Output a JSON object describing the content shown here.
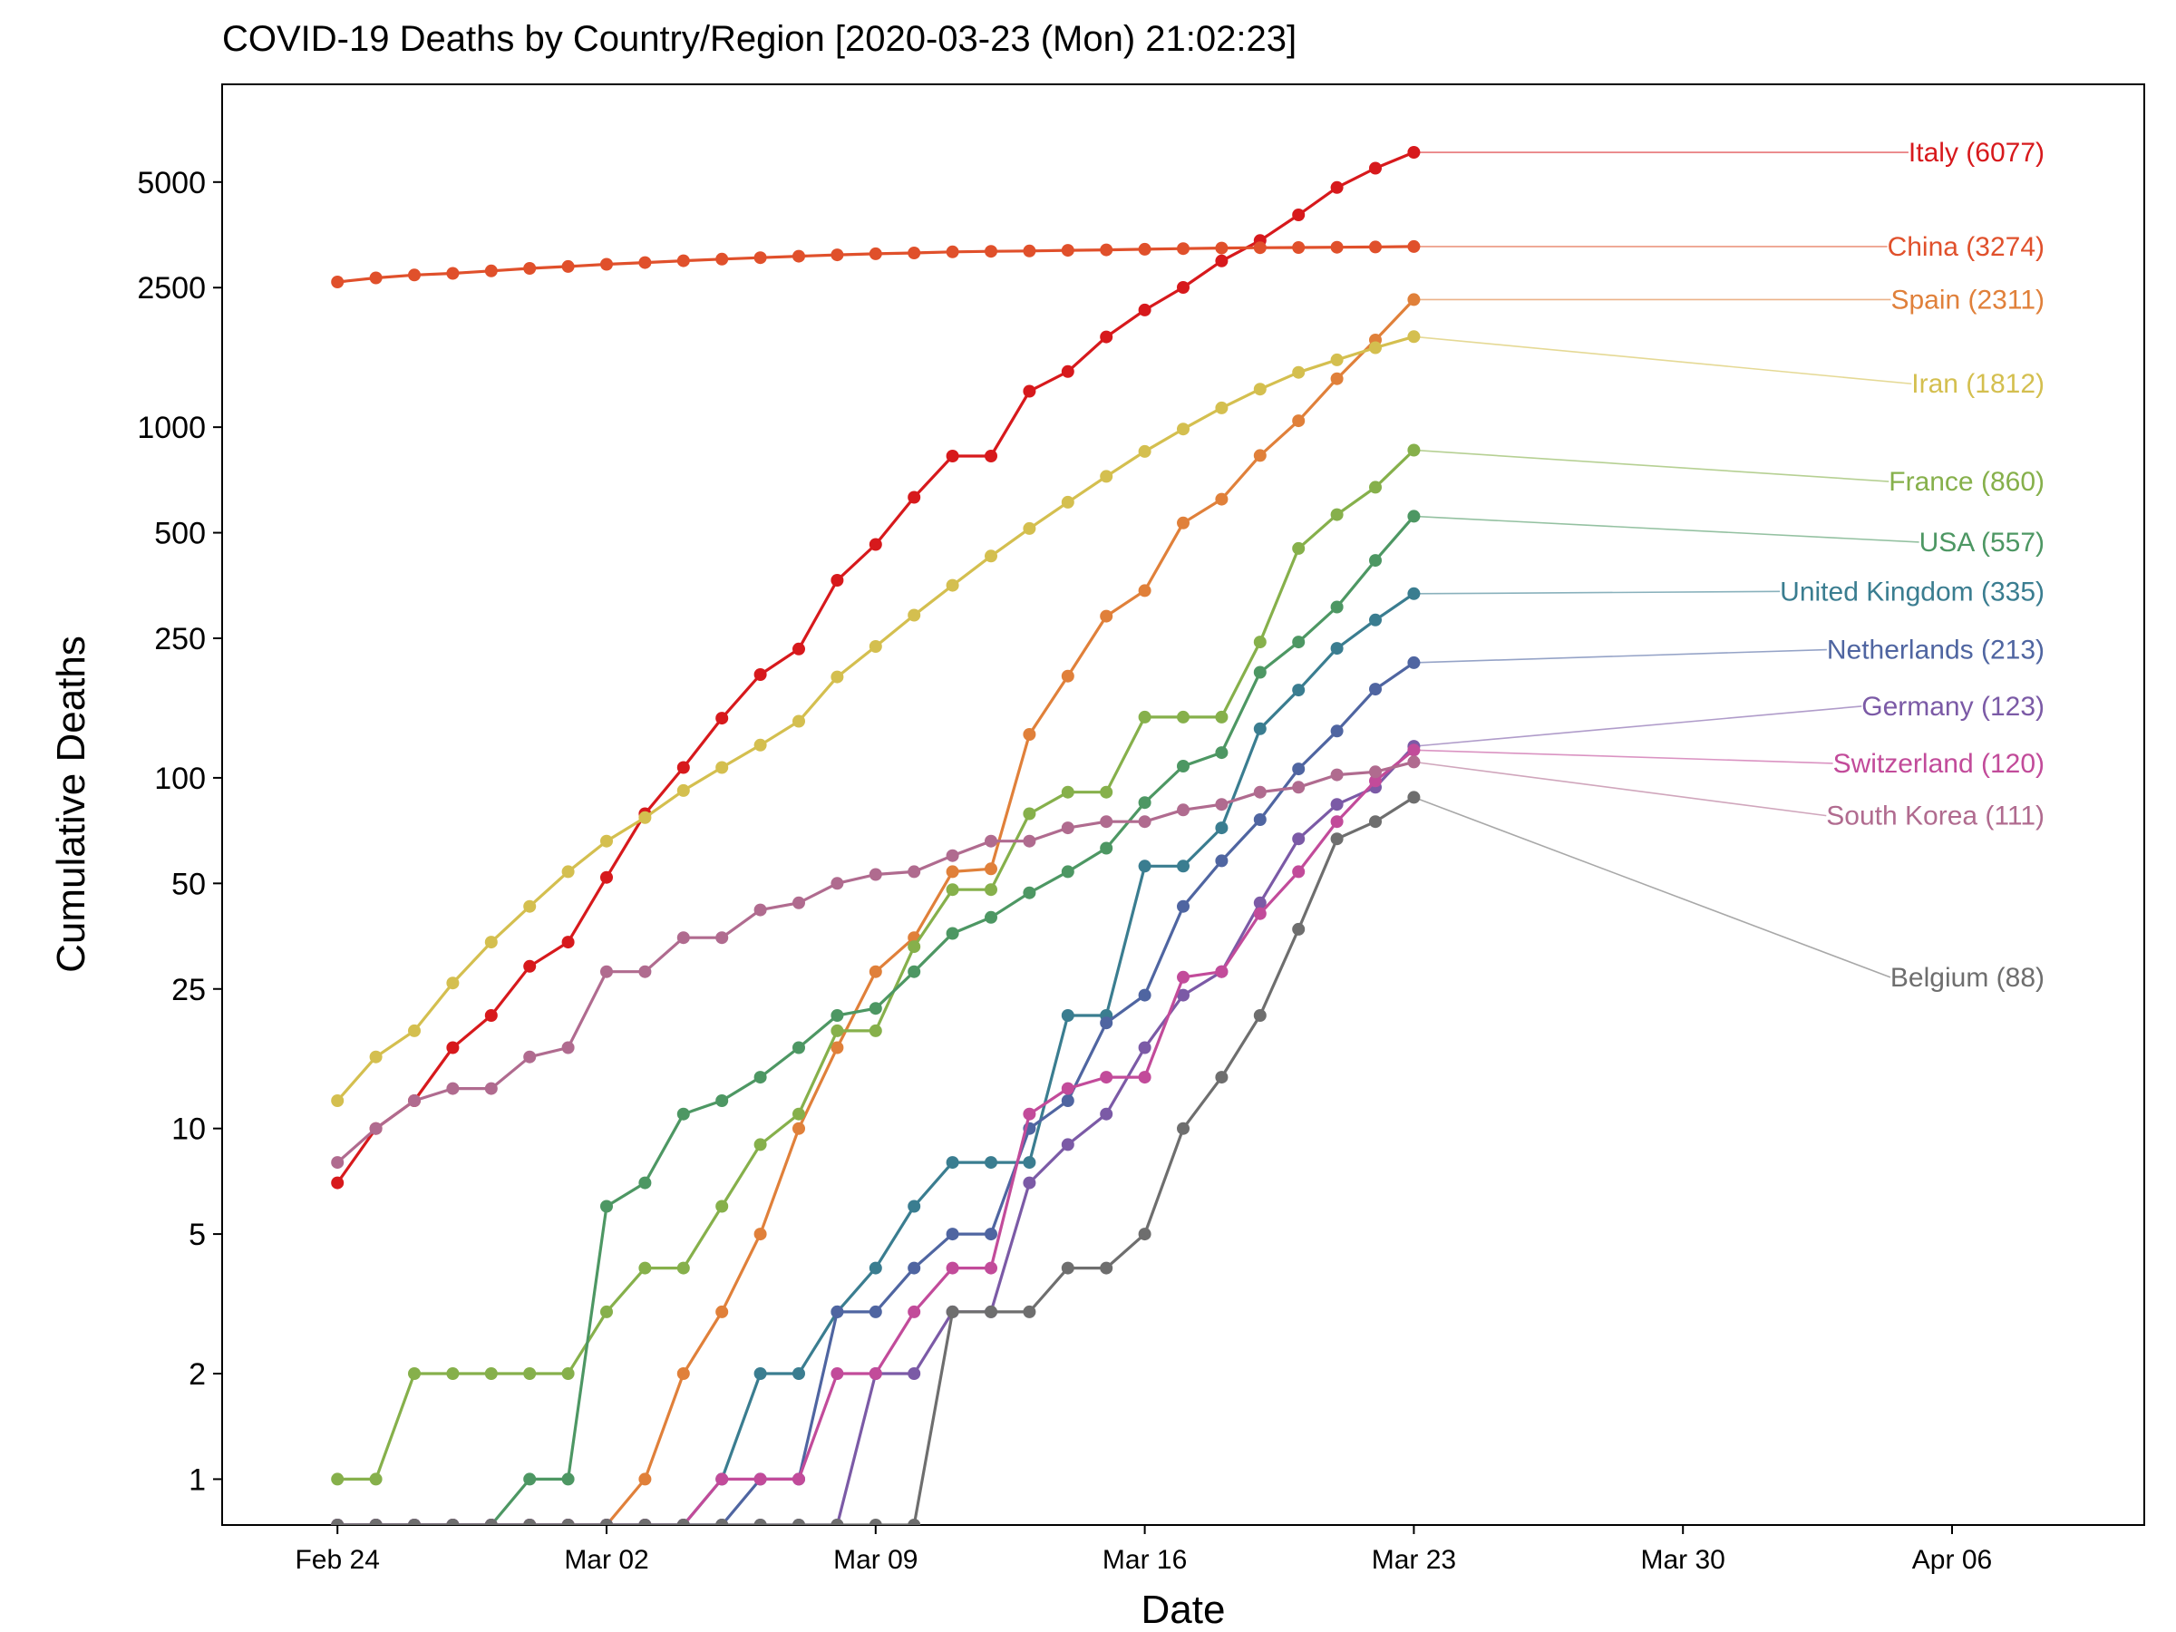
{
  "chart_data": {
    "type": "line",
    "title": "COVID-19 Deaths by Country/Region [2020-03-23 (Mon) 21:02:23]",
    "xlabel": "Date",
    "ylabel": "Cumulative Deaths",
    "y_scale": "log",
    "grid": false,
    "legend": "direct labels at right end of each line",
    "x_axis": {
      "start_date": "2020-02-21",
      "end_date": "2020-04-11",
      "ticks": [
        {
          "date": "2020-02-24",
          "label": "Feb 24"
        },
        {
          "date": "2020-03-02",
          "label": "Mar 02"
        },
        {
          "date": "2020-03-09",
          "label": "Mar 09"
        },
        {
          "date": "2020-03-16",
          "label": "Mar 16"
        },
        {
          "date": "2020-03-23",
          "label": "Mar 23"
        },
        {
          "date": "2020-03-30",
          "label": "Mar 30"
        },
        {
          "date": "2020-04-06",
          "label": "Apr 06"
        }
      ]
    },
    "y_axis": {
      "min": 0.74,
      "max": 9500,
      "ticks": [
        {
          "value": 1,
          "label": "1"
        },
        {
          "value": 2,
          "label": "2"
        },
        {
          "value": 5,
          "label": "5"
        },
        {
          "value": 10,
          "label": "10"
        },
        {
          "value": 25,
          "label": "25"
        },
        {
          "value": 50,
          "label": "50"
        },
        {
          "value": 100,
          "label": "100"
        },
        {
          "value": 250,
          "label": "250"
        },
        {
          "value": 500,
          "label": "500"
        },
        {
          "value": 1000,
          "label": "1000"
        },
        {
          "value": 2500,
          "label": "2500"
        },
        {
          "value": 5000,
          "label": "5000"
        }
      ]
    },
    "dates": [
      "2020-02-24",
      "2020-02-25",
      "2020-02-26",
      "2020-02-27",
      "2020-02-28",
      "2020-02-29",
      "2020-03-01",
      "2020-03-02",
      "2020-03-03",
      "2020-03-04",
      "2020-03-05",
      "2020-03-06",
      "2020-03-07",
      "2020-03-08",
      "2020-03-09",
      "2020-03-10",
      "2020-03-11",
      "2020-03-12",
      "2020-03-13",
      "2020-03-14",
      "2020-03-15",
      "2020-03-16",
      "2020-03-17",
      "2020-03-18",
      "2020-03-19",
      "2020-03-20",
      "2020-03-21",
      "2020-03-22",
      "2020-03-23"
    ],
    "series": [
      {
        "name": "Italy",
        "label": "Italy (6077)",
        "color": "#d7191c",
        "label_value": 6077,
        "values": [
          7,
          10,
          12,
          17,
          21,
          29,
          34,
          52,
          79,
          107,
          148,
          197,
          233,
          366,
          463,
          631,
          827,
          827,
          1266,
          1441,
          1809,
          2158,
          2503,
          2978,
          3405,
          4032,
          4825,
          5476,
          6077
        ]
      },
      {
        "name": "China",
        "label": "China (3274)",
        "color": "#e0502b",
        "label_value": 3274,
        "values": [
          2595,
          2665,
          2717,
          2746,
          2790,
          2837,
          2872,
          2914,
          2947,
          2983,
          3015,
          3044,
          3072,
          3100,
          3123,
          3139,
          3161,
          3172,
          3180,
          3193,
          3203,
          3217,
          3230,
          3241,
          3249,
          3253,
          3259,
          3265,
          3274
        ]
      },
      {
        "name": "Spain",
        "label": "Spain (2311)",
        "color": "#e0803a",
        "label_value": 2311,
        "values": [
          0,
          0,
          0,
          0,
          0,
          0,
          0,
          0,
          1,
          2,
          3,
          5,
          10,
          17,
          28,
          35,
          54,
          55,
          133,
          195,
          289,
          342,
          533,
          623,
          830,
          1043,
          1375,
          1772,
          2311
        ]
      },
      {
        "name": "Iran",
        "label": "Iran (1812)",
        "color": "#d4bf4f",
        "label_value": 1812,
        "values": [
          12,
          16,
          19,
          26,
          34,
          43,
          54,
          66,
          77,
          92,
          107,
          124,
          145,
          194,
          237,
          291,
          354,
          429,
          514,
          611,
          724,
          853,
          988,
          1135,
          1284,
          1433,
          1556,
          1685,
          1812
        ]
      },
      {
        "name": "France",
        "label": "France (860)",
        "color": "#86b04b",
        "label_value": 860,
        "values": [
          1,
          1,
          2,
          2,
          2,
          2,
          2,
          3,
          4,
          4,
          6,
          9,
          11,
          19,
          19,
          33,
          48,
          48,
          79,
          91,
          91,
          149,
          149,
          149,
          244,
          451,
          563,
          674,
          860
        ]
      },
      {
        "name": "USA",
        "label": "USA (557)",
        "color": "#4d9763",
        "label_value": 557,
        "values": [
          0,
          0,
          0,
          0,
          0,
          1,
          1,
          6,
          7,
          11,
          12,
          14,
          17,
          21,
          22,
          28,
          36,
          40,
          47,
          54,
          63,
          85,
          108,
          118,
          200,
          244,
          307,
          417,
          557
        ]
      },
      {
        "name": "United Kingdom",
        "label": "United Kingdom (335)",
        "color": "#3a7d90",
        "label_value": 335,
        "values": [
          0,
          0,
          0,
          0,
          0,
          0,
          0,
          0,
          0,
          0,
          1,
          2,
          2,
          3,
          4,
          6,
          8,
          8,
          8,
          21,
          21,
          56,
          56,
          72,
          138,
          178,
          234,
          282,
          335
        ]
      },
      {
        "name": "Netherlands",
        "label": "Netherlands (213)",
        "color": "#4f65a1",
        "label_value": 213,
        "values": [
          0,
          0,
          0,
          0,
          0,
          0,
          0,
          0,
          0,
          0,
          0,
          1,
          1,
          3,
          3,
          4,
          5,
          5,
          10,
          12,
          20,
          24,
          43,
          58,
          76,
          106,
          136,
          179,
          213
        ]
      },
      {
        "name": "Germany",
        "label": "Germany (123)",
        "color": "#7b5aa6",
        "label_value": 123,
        "values": [
          0,
          0,
          0,
          0,
          0,
          0,
          0,
          0,
          0,
          0,
          0,
          0,
          0,
          0,
          2,
          2,
          3,
          3,
          7,
          9,
          11,
          17,
          24,
          28,
          44,
          67,
          84,
          94,
          123
        ]
      },
      {
        "name": "Switzerland",
        "label": "Switzerland (120)",
        "color": "#c24b9a",
        "label_value": 120,
        "values": [
          0,
          0,
          0,
          0,
          0,
          0,
          0,
          0,
          0,
          0,
          1,
          1,
          1,
          2,
          2,
          3,
          4,
          4,
          11,
          13,
          14,
          14,
          27,
          28,
          41,
          54,
          75,
          98,
          120
        ]
      },
      {
        "name": "South Korea",
        "label": "South Korea (111)",
        "color": "#b06b8f",
        "label_value": 111,
        "values": [
          8,
          10,
          12,
          13,
          13,
          16,
          17,
          28,
          28,
          35,
          35,
          42,
          44,
          50,
          53,
          54,
          60,
          66,
          66,
          72,
          75,
          75,
          81,
          84,
          91,
          94,
          102,
          104,
          111
        ]
      },
      {
        "name": "Belgium",
        "label": "Belgium (88)",
        "color": "#6e6e6e",
        "label_value": 88,
        "values": [
          0,
          0,
          0,
          0,
          0,
          0,
          0,
          0,
          0,
          0,
          0,
          0,
          0,
          0,
          0,
          0,
          3,
          3,
          3,
          4,
          4,
          5,
          10,
          14,
          21,
          37,
          67,
          75,
          88
        ]
      }
    ],
    "label_positions": [
      {
        "name": "Italy",
        "value": 6077
      },
      {
        "name": "China",
        "value": 3274
      },
      {
        "name": "Spain",
        "value": 2311
      },
      {
        "name": "Iran",
        "value": 1330
      },
      {
        "name": "France",
        "value": 700
      },
      {
        "name": "USA",
        "value": 470
      },
      {
        "name": "United Kingdom",
        "value": 340
      },
      {
        "name": "Netherlands",
        "value": 232
      },
      {
        "name": "Germany",
        "value": 160
      },
      {
        "name": "Switzerland",
        "value": 110
      },
      {
        "name": "South Korea",
        "value": 78
      },
      {
        "name": "Belgium",
        "value": 27
      }
    ]
  }
}
